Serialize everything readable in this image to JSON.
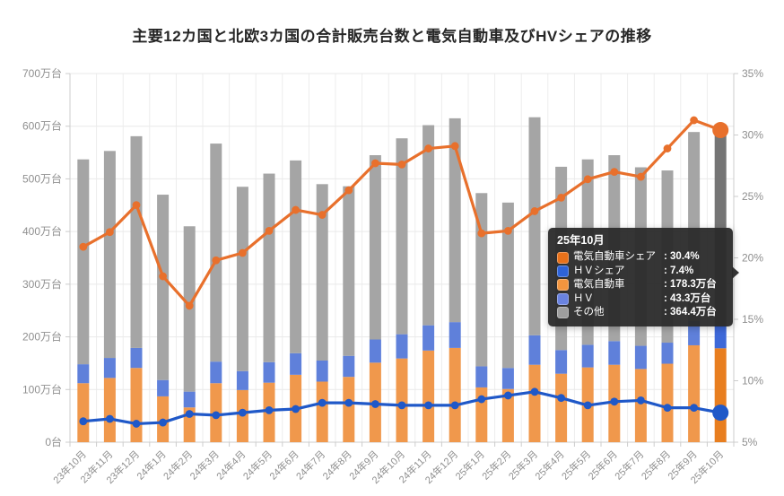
{
  "page": {
    "title": "主要12カ国と北欧3カ国の合計販売台数と電気自動車及びHVシェアの推移"
  },
  "chart_data": {
    "type": "bar",
    "subtype": "stacked-bar-with-lines",
    "title": "主要12カ国と北欧3カ国の合計販売台数と電気自動車及びHVシェアの推移",
    "grid": true,
    "legend_position": "none",
    "hover_index": 24,
    "categories": [
      "23年10月",
      "23年11月",
      "23年12月",
      "24年1月",
      "24年2月",
      "24年3月",
      "24年4月",
      "24年5月",
      "24年6月",
      "24年7月",
      "24年8月",
      "24年9月",
      "24年10月",
      "24年11月",
      "24年12月",
      "25年1月",
      "25年2月",
      "25年3月",
      "25年4月",
      "25年5月",
      "25年6月",
      "25年7月",
      "25年8月",
      "25年9月",
      "25年10月"
    ],
    "y_left": {
      "min": 0,
      "max": 700,
      "step": 100,
      "unit": "万台",
      "tick_labels": [
        "0台",
        "100万台",
        "200万台",
        "300万台",
        "400万台",
        "500万台",
        "600万台",
        "700万台"
      ]
    },
    "y_right": {
      "min": 5,
      "max": 35,
      "step": 5,
      "unit": "%",
      "tick_labels": [
        "5%",
        "10%",
        "15%",
        "20%",
        "25%",
        "30%",
        "35%"
      ]
    },
    "bar_series": [
      {
        "key": "ev",
        "name": "電気自動車",
        "stack": "total",
        "axis": "left",
        "color": "#f0984c",
        "emphasis_color": "#e87e1f",
        "values": [
          112,
          122,
          141,
          87,
          66,
          112,
          99,
          113,
          128,
          115,
          124,
          151,
          159,
          174,
          179,
          104,
          101,
          147,
          130,
          142,
          147,
          139,
          149,
          184,
          178.3
        ]
      },
      {
        "key": "hv",
        "name": "ＨＶ",
        "stack": "total",
        "axis": "left",
        "color": "#5f80da",
        "emphasis_color": "#3d68d8",
        "values": [
          36,
          38,
          38,
          31,
          30,
          41,
          36,
          39,
          41,
          40,
          40,
          44,
          46,
          48,
          49,
          40,
          40,
          56,
          45,
          43,
          45,
          44,
          40,
          46,
          43.3
        ]
      },
      {
        "key": "other",
        "name": "その他",
        "stack": "total",
        "axis": "left",
        "color": "#a5a5a5",
        "emphasis_color": "#757575",
        "values": [
          389,
          393,
          402,
          352,
          314,
          414,
          350,
          358,
          366,
          335,
          322,
          350,
          372,
          380,
          387,
          329,
          314,
          414,
          348,
          352,
          353,
          339,
          327,
          359,
          364.4
        ]
      }
    ],
    "line_series": [
      {
        "key": "ev-share",
        "name": "電気自動車シェア",
        "axis": "right",
        "color": "#e8702c",
        "values": [
          20.9,
          22.1,
          24.3,
          18.5,
          16.1,
          19.8,
          20.4,
          22.2,
          23.9,
          23.5,
          25.5,
          27.7,
          27.6,
          28.9,
          29.1,
          22.0,
          22.2,
          23.8,
          24.9,
          26.4,
          27.0,
          26.6,
          28.9,
          31.2,
          30.4
        ]
      },
      {
        "key": "hv-share",
        "name": "ＨＶシェア",
        "axis": "right",
        "color": "#1f58c8",
        "values": [
          6.7,
          6.9,
          6.5,
          6.6,
          7.3,
          7.2,
          7.4,
          7.6,
          7.7,
          8.2,
          8.2,
          8.1,
          8.0,
          8.0,
          8.0,
          8.5,
          8.8,
          9.1,
          8.6,
          8.0,
          8.3,
          8.4,
          7.8,
          7.8,
          7.4
        ]
      }
    ]
  },
  "tooltip": {
    "title": "25年10月",
    "rows": [
      {
        "label": "電気自動車シェア",
        "value": "30.4%",
        "color": "#e8711a"
      },
      {
        "label": "ＨＶシェア",
        "value": "7.4%",
        "color": "#2e63d8"
      },
      {
        "label": "電気自動車",
        "value": "178.3万台",
        "color": "#f2953f"
      },
      {
        "label": "ＨＶ",
        "value": "43.3万台",
        "color": "#6a83e0"
      },
      {
        "label": "その他",
        "value": "364.4万台",
        "color": "#9e9e9e"
      }
    ]
  }
}
